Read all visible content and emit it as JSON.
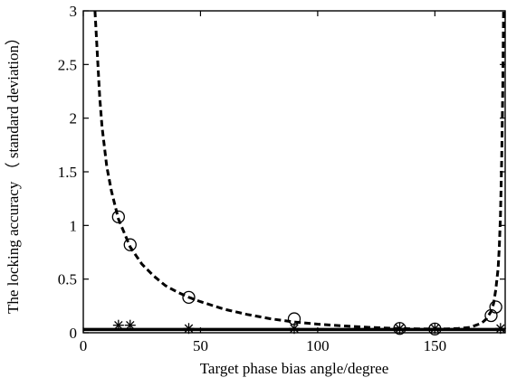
{
  "chart_data": {
    "type": "line",
    "title": "",
    "xlabel": "Target phase bias angle/degree",
    "ylabel": "The locking accuracy （ standard deviation）",
    "xlim": [
      0,
      180
    ],
    "ylim": [
      0,
      3
    ],
    "x_ticks": [
      0,
      50,
      100,
      150
    ],
    "y_ticks": [
      0,
      0.5,
      1,
      1.5,
      2,
      2.5,
      3
    ],
    "x_tick_labels": [
      "0",
      "50",
      "100",
      "150"
    ],
    "y_tick_labels": [
      "0",
      "0.5",
      "1",
      "1.5",
      "2",
      "2.5",
      "3"
    ],
    "grid": false,
    "legend": "none",
    "series": [
      {
        "style": "dashed-line",
        "color": "#000000",
        "x": [
          5,
          6,
          7,
          8,
          10,
          12,
          15,
          20,
          25,
          30,
          35,
          40,
          45,
          50,
          60,
          70,
          80,
          90,
          100,
          110,
          120,
          130,
          135,
          140,
          145,
          150,
          155,
          160,
          165,
          170,
          172,
          174,
          175,
          176,
          177,
          177.5,
          178,
          178.5,
          179,
          179.3
        ],
        "y": [
          3.0,
          2.6,
          2.2,
          1.92,
          1.55,
          1.32,
          1.06,
          0.8,
          0.64,
          0.53,
          0.44,
          0.38,
          0.33,
          0.29,
          0.22,
          0.17,
          0.13,
          0.1,
          0.08,
          0.065,
          0.052,
          0.043,
          0.04,
          0.037,
          0.035,
          0.035,
          0.036,
          0.04,
          0.05,
          0.09,
          0.13,
          0.2,
          0.27,
          0.4,
          0.6,
          0.8,
          1.1,
          1.6,
          2.3,
          3.0
        ]
      },
      {
        "marker": "circle",
        "color": "#000000",
        "x": [
          15,
          20,
          45,
          90,
          135,
          150,
          174,
          176
        ],
        "y": [
          1.08,
          0.82,
          0.33,
          0.13,
          0.04,
          0.035,
          0.16,
          0.24
        ]
      },
      {
        "style": "solid-line",
        "color": "#000000",
        "x": [
          0,
          180
        ],
        "y": [
          0.03,
          0.03
        ]
      },
      {
        "marker": "asterisk",
        "color": "#000000",
        "x": [
          15,
          20,
          45,
          90,
          135,
          150,
          178
        ],
        "y": [
          0.07,
          0.07,
          0.04,
          0.04,
          0.04,
          0.04,
          0.04
        ]
      }
    ]
  }
}
